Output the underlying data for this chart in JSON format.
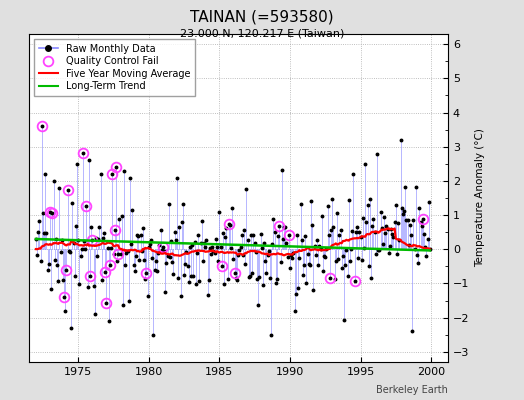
{
  "title": "TAINAN (=593580)",
  "subtitle": "23.000 N, 120.217 E (Taiwan)",
  "ylabel": "Temperature Anomaly (°C)",
  "watermark": "Berkeley Earth",
  "xlim": [
    1971.5,
    2001.2
  ],
  "ylim": [
    -3.3,
    6.3
  ],
  "yticks": [
    -3,
    -2,
    -1,
    0,
    1,
    2,
    3,
    4,
    5,
    6
  ],
  "xticks": [
    1975,
    1980,
    1985,
    1990,
    1995,
    2000
  ],
  "background_color": "#e0e0e0",
  "plot_background": "#ffffff",
  "raw_line_color": "#8888ff",
  "raw_marker_color": "#000000",
  "qc_fail_color": "#ff44ff",
  "moving_avg_color": "#ff0000",
  "trend_color": "#00bb00",
  "seed": 42
}
